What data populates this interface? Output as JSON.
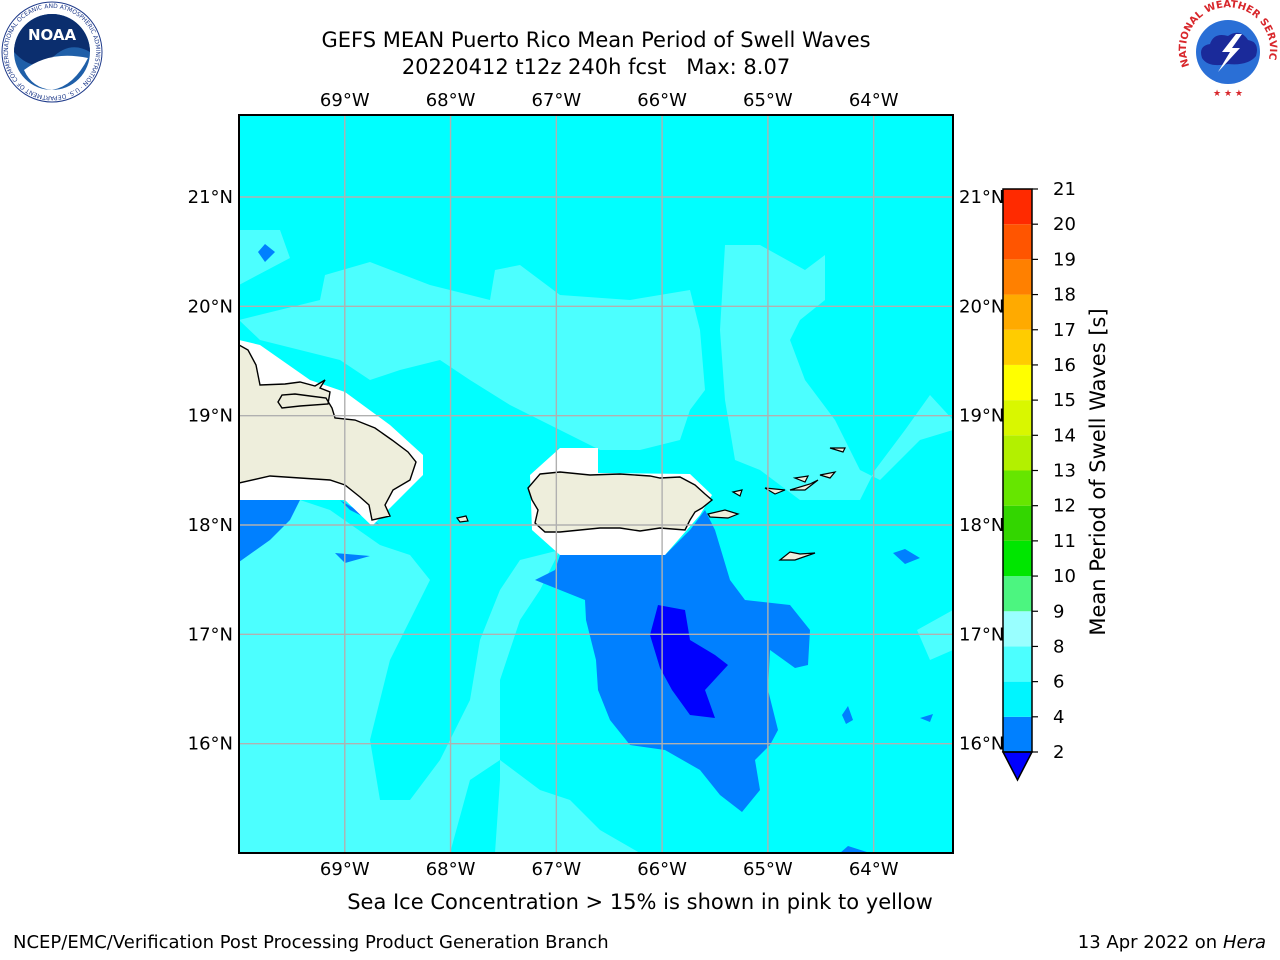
{
  "title": {
    "line1": "GEFS MEAN Puerto Rico Mean Period of Swell Waves",
    "line2_run": "20220412 t12z 240h fcst",
    "line2_max": "Max: 8.07"
  },
  "axes": {
    "lon_labels": [
      "69°W",
      "68°W",
      "67°W",
      "66°W",
      "65°W",
      "64°W"
    ],
    "lat_labels": [
      "21°N",
      "20°N",
      "19°N",
      "18°N",
      "17°N",
      "16°N"
    ],
    "lon_values": [
      -69,
      -68,
      -67,
      -66,
      -65,
      -64
    ],
    "lat_values": [
      21,
      20,
      19,
      18,
      17,
      16
    ],
    "lon_range": [
      -70.0,
      -63.25
    ],
    "lat_range": [
      15.0,
      21.75
    ],
    "grid": true
  },
  "colorbar": {
    "label": "Mean Period of Swell Waves [s]",
    "levels": [
      2,
      4,
      6,
      8,
      9,
      10,
      11,
      12,
      13,
      14,
      15,
      16,
      17,
      18,
      19,
      20,
      21
    ],
    "tick_labels": [
      "2",
      "4",
      "6",
      "8",
      "9",
      "10",
      "11",
      "12",
      "13",
      "14",
      "15",
      "16",
      "17",
      "18",
      "19",
      "20",
      "21"
    ],
    "colors": [
      "#0080ff",
      "#00f5ff",
      "#4cffff",
      "#99ffff",
      "#4cf580",
      "#00e600",
      "#33d600",
      "#66e600",
      "#b3f000",
      "#d9f700",
      "#ffff00",
      "#ffcc00",
      "#ffaa00",
      "#ff8000",
      "#ff5500",
      "#ff2a00"
    ],
    "extend_color": "#0000ff",
    "extend": "min"
  },
  "colors": {
    "ocean_6_8": "#4cffff",
    "ocean_4_6": "#00ffff",
    "swell_2_4": "#0080ff",
    "swell_below_2": "#0000ff",
    "land": "#eeeedc",
    "ice_mask": "#ffffff",
    "grid": "#b0b0b0"
  },
  "caption": "Sea Ice Concentration > 15% is shown in pink to yellow",
  "footer": {
    "left": "NCEP/EMC/Verification Post Processing Product Generation Branch",
    "right_date": "13 Apr 2022 on",
    "right_host": "Hera"
  },
  "logos": {
    "left": "NOAA",
    "left_ring": "NATIONAL OCEANIC AND ATMOSPHERIC ADMINISTRATION · U.S. DEPARTMENT OF COMMERCE",
    "right_ring": "NATIONAL WEATHER SERVICE"
  }
}
